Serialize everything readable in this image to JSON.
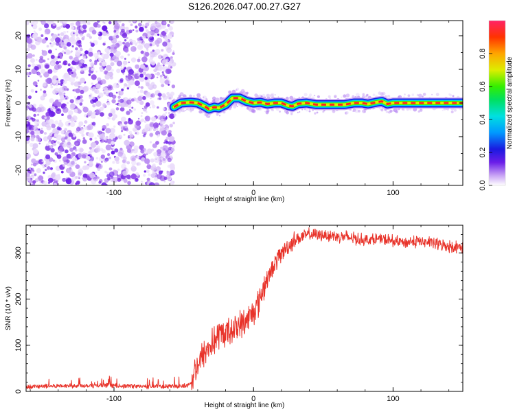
{
  "title": "S126.2026.047.00.27.G27",
  "chart_data": [
    {
      "type": "heatmap",
      "xlabel": "Height of straight line (km)",
      "ylabel": "Frequency (Hz)",
      "xlim": [
        -163,
        150
      ],
      "ylim": [
        -24.5,
        24.5
      ],
      "x_ticks": [
        -100,
        0,
        100
      ],
      "y_ticks": [
        -20,
        -10,
        0,
        10,
        20
      ],
      "noise_region_x": [
        -163,
        -57
      ],
      "signal_region_x": [
        -57,
        150
      ],
      "ridge": {
        "x": [
          -57,
          -52,
          -45,
          -40,
          -35,
          -32,
          -28,
          -25,
          -20,
          -15,
          -10,
          -5,
          0,
          5,
          10,
          15,
          20,
          25,
          28,
          32,
          38,
          45,
          55,
          65,
          72,
          78,
          82,
          88,
          92,
          96,
          100,
          110,
          120,
          130,
          140,
          150
        ],
        "y": [
          -1.2,
          0,
          0.2,
          0,
          -1,
          -1.8,
          -1.2,
          -1.5,
          -0.5,
          1.5,
          1.5,
          0.5,
          0,
          0.2,
          -0.3,
          0,
          0,
          -0.8,
          -1,
          -0.2,
          0,
          -0.5,
          -0.5,
          -0.5,
          0,
          0,
          -0.3,
          0.2,
          0.5,
          -0.3,
          0,
          0,
          0,
          0,
          0,
          0
        ]
      },
      "colorbar": {
        "label": "Normalized spectral amplitude",
        "range": [
          0,
          1
        ],
        "ticks": [
          0.0,
          0.2,
          0.4,
          0.6,
          0.8
        ]
      }
    },
    {
      "type": "line",
      "xlabel": "Height of straight line (km)",
      "ylabel": "SNR (10 * v/v)",
      "xlim": [
        -163,
        150
      ],
      "ylim": [
        0,
        360
      ],
      "x_ticks": [
        -100,
        0,
        100
      ],
      "y_ticks": [
        0,
        100,
        200,
        300
      ],
      "series": [
        {
          "name": "SNR",
          "color": "#e8332a",
          "x": [
            -163,
            -140,
            -120,
            -100,
            -80,
            -60,
            -48,
            -44,
            -42,
            -38,
            -32,
            -25,
            -18,
            -12,
            -6,
            -2,
            3,
            6,
            10,
            15,
            20,
            25,
            30,
            40,
            55,
            70,
            80,
            90,
            100,
            110,
            120,
            130,
            140,
            150
          ],
          "y": [
            10,
            12,
            13,
            12,
            11,
            11,
            12,
            20,
            45,
            70,
            95,
            120,
            130,
            140,
            150,
            165,
            190,
            215,
            245,
            275,
            300,
            315,
            330,
            340,
            338,
            333,
            328,
            330,
            325,
            323,
            325,
            320,
            315,
            312
          ]
        }
      ]
    }
  ]
}
